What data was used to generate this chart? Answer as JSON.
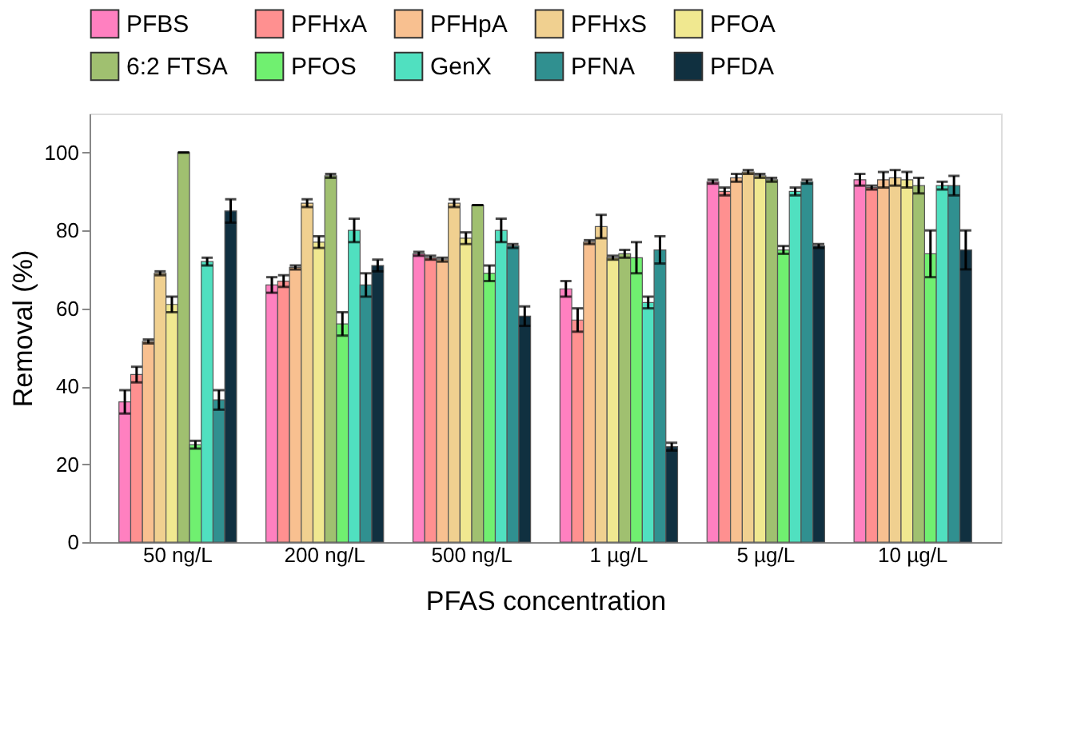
{
  "chart_data": {
    "type": "bar",
    "xlabel": "PFAS concentration",
    "ylabel": "Removal (%)",
    "categories": [
      "50 ng/L",
      "200 ng/L",
      "500 ng/L",
      "1 µg/L",
      "5 µg/L",
      "10 µg/L"
    ],
    "ylim": [
      0,
      110
    ],
    "yticks": [
      0,
      20,
      40,
      60,
      80,
      100
    ],
    "grid": false,
    "legend": "top",
    "series": [
      {
        "name": "PFBS",
        "color": "#ff80c0",
        "values": [
          36,
          66,
          74,
          65,
          92.5,
          93
        ],
        "errors": [
          3,
          2,
          0.5,
          2,
          0.5,
          1.5
        ]
      },
      {
        "name": "PFHxA",
        "color": "#ff9090",
        "values": [
          43,
          67,
          73,
          57,
          90,
          91
        ],
        "errors": [
          2,
          1.5,
          0.5,
          3,
          1,
          0.5
        ]
      },
      {
        "name": "PFHpA",
        "color": "#f8c090",
        "values": [
          51.5,
          70.5,
          72.5,
          77,
          93.5,
          93
        ],
        "errors": [
          0.5,
          0.5,
          0.5,
          0.5,
          1,
          2
        ]
      },
      {
        "name": "PFHxS",
        "color": "#f0d090",
        "values": [
          69,
          87,
          87,
          81,
          95,
          93.5
        ],
        "errors": [
          0.5,
          1,
          1,
          3,
          0.5,
          2
        ]
      },
      {
        "name": "PFOA",
        "color": "#f0e890",
        "values": [
          61,
          77,
          78,
          73,
          94,
          93
        ],
        "errors": [
          2,
          1.5,
          1.5,
          0.5,
          0.5,
          2
        ]
      },
      {
        "name": "6:2 FTSA",
        "color": "#a0c070",
        "values": [
          100,
          94,
          86.5,
          74,
          93,
          91.5
        ],
        "errors": [
          0,
          0.5,
          0,
          1,
          0.5,
          2
        ]
      },
      {
        "name": "PFOS",
        "color": "#70f070",
        "values": [
          25,
          56,
          69,
          73,
          75,
          74
        ],
        "errors": [
          1,
          3,
          2,
          4,
          1,
          6
        ]
      },
      {
        "name": "GenX",
        "color": "#50e0c0",
        "values": [
          72,
          80,
          80,
          61.5,
          90,
          91.5
        ],
        "errors": [
          1,
          3,
          3,
          1.5,
          1,
          1
        ]
      },
      {
        "name": "PFNA",
        "color": "#309090",
        "values": [
          36.5,
          66,
          76,
          75,
          92.5,
          91.5
        ],
        "errors": [
          2.5,
          3,
          0.5,
          3.5,
          0.5,
          2.5
        ]
      },
      {
        "name": "PFDA",
        "color": "#103040",
        "values": [
          85,
          71,
          58,
          24.5,
          76,
          75
        ],
        "errors": [
          3,
          1.5,
          2.5,
          1,
          0.5,
          5
        ]
      }
    ]
  }
}
